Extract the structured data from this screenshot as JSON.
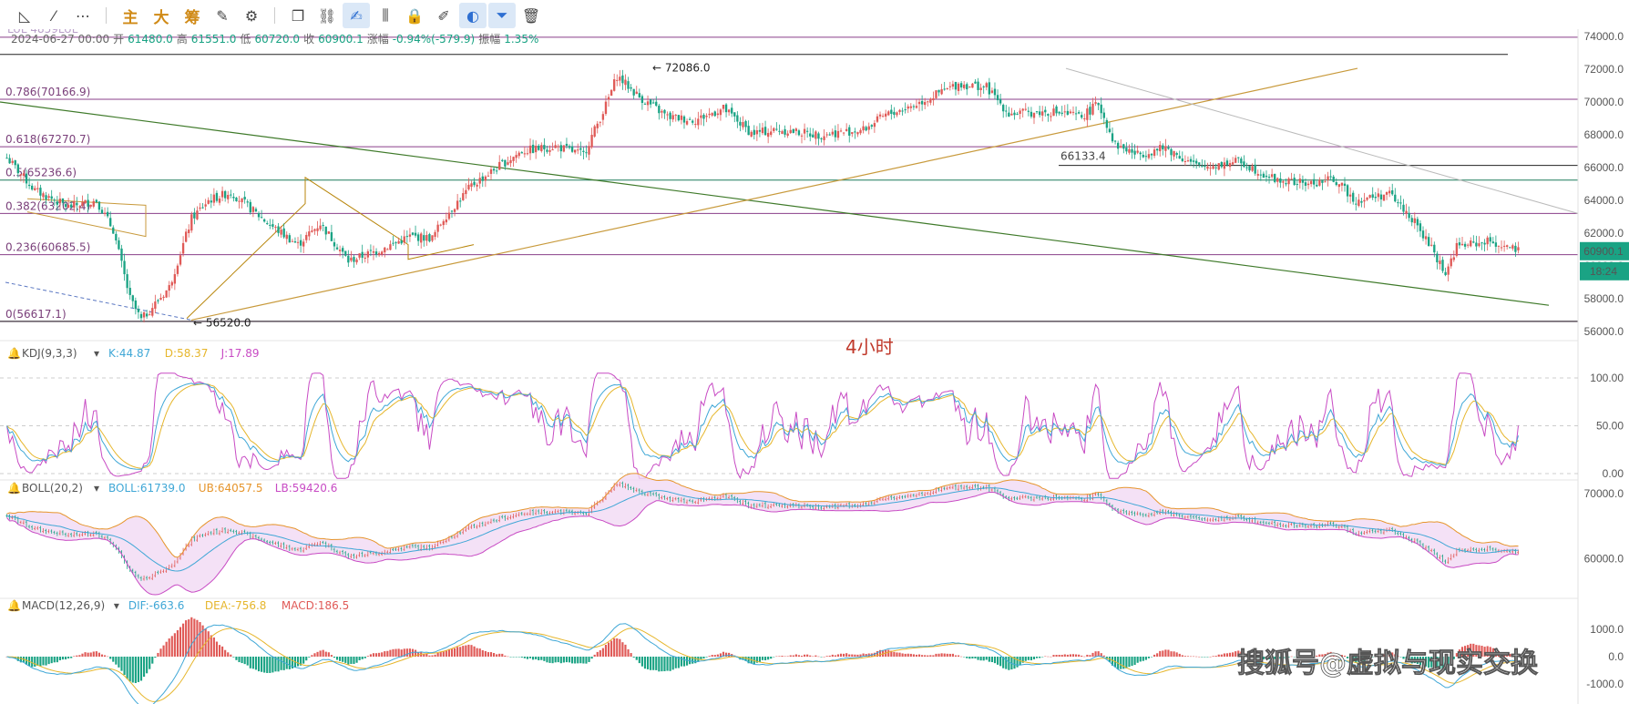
{
  "toolbar": {
    "items": [
      {
        "name": "ruler-icon",
        "glyph": "◺"
      },
      {
        "name": "line-tool-icon",
        "glyph": "⁄"
      },
      {
        "name": "more-icon",
        "glyph": "⋯"
      },
      {
        "name": "sep"
      },
      {
        "name": "zhu-button",
        "label": "主"
      },
      {
        "name": "da-button",
        "label": "大"
      },
      {
        "name": "chou-button",
        "label": "筹"
      },
      {
        "name": "edit-icon",
        "glyph": "✎"
      },
      {
        "name": "brush-settings-icon",
        "glyph": "⚙"
      },
      {
        "name": "sep"
      },
      {
        "name": "copy-icon",
        "glyph": "❐"
      },
      {
        "name": "link-icon",
        "glyph": "⛓"
      },
      {
        "name": "draw-mode-icon",
        "glyph": "✍",
        "active": true
      },
      {
        "name": "candle-icon",
        "glyph": "⫼"
      },
      {
        "name": "lock-icon",
        "glyph": "🔒"
      },
      {
        "name": "note-icon",
        "glyph": "✐"
      },
      {
        "name": "magnet-icon",
        "glyph": "◐",
        "active": true
      },
      {
        "name": "filter-icon",
        "glyph": "⏷",
        "active": true
      },
      {
        "name": "trash-icon",
        "glyph": "🗑"
      }
    ]
  },
  "header": {
    "symbol_fragment": "LUL 4859LUL",
    "date": "2024-06-27 00:00",
    "open_label": "开",
    "open": "61480.0",
    "high_label": "高",
    "high": "61551.0",
    "low_label": "低",
    "low": "60720.0",
    "close_label": "收",
    "close": "60900.1",
    "change_label": "涨幅",
    "change": "-0.94%(-579.9)",
    "amplitude_label": "振幅",
    "amplitude": "1.35%"
  },
  "main_chart": {
    "y_ticks": [
      "74000.0",
      "72000.0",
      "70000.0",
      "68000.0",
      "66000.0",
      "64000.0",
      "62000.0",
      "60000.0",
      "58000.0",
      "56000.0"
    ],
    "fib_levels": [
      {
        "label": "0.786(70166.9)",
        "value": 70166.9
      },
      {
        "label": "0.618(67270.7)",
        "value": 67270.7
      },
      {
        "label": "0.5(65236.6)",
        "value": 65236.6
      },
      {
        "label": "0.382(63202.4)",
        "value": 63202.4
      },
      {
        "label": "0.236(60685.5)",
        "value": 60685.5
      },
      {
        "label": "0(56617.1)",
        "value": 56617.1
      }
    ],
    "annotations": {
      "high_marker": "← 72086.0",
      "low_marker": "← 56520.0",
      "level_label": "66133.4",
      "period_label": "4小时"
    },
    "last_price": "60900.1",
    "countdown": "18:24",
    "colors": {
      "up": "#e05a57",
      "down": "#1aa384",
      "fib": "#8a3f8a",
      "last_price": "#1aa384"
    }
  },
  "kdj": {
    "title": "KDJ(9,3,3)",
    "k_label": "K:44.87",
    "d_label": "D:58.37",
    "j_label": "J:17.89",
    "y_ticks": [
      "100.00",
      "50.00",
      "0.00"
    ],
    "colors": {
      "k": "#3fa7d6",
      "d": "#e6b62c",
      "j": "#c84bc4"
    }
  },
  "boll": {
    "title": "BOLL(20,2)",
    "mid_label": "BOLL:61739.0",
    "ub_label": "UB:64057.5",
    "lb_label": "LB:59420.6",
    "y_ticks": [
      "70000.0",
      "60000.0"
    ],
    "colors": {
      "mid": "#3fa7d6",
      "ub": "#e6952c",
      "lb": "#c84bc4",
      "fill": "#f1d9f4"
    }
  },
  "macd": {
    "title": "MACD(12,26,9)",
    "dif_label": "DIF:-663.6",
    "dea_label": "DEA:-756.8",
    "macd_label": "MACD:186.5",
    "y_ticks": [
      "1000.0",
      "0.0",
      "-1000.0"
    ],
    "colors": {
      "dif": "#3fa7d6",
      "dea": "#e6b62c"
    }
  },
  "watermark": "搜狐号@虚拟与现实交换",
  "chart_data": {
    "type": "candlestick",
    "timeframe": "4小时",
    "ylim": [
      56000,
      74000
    ],
    "close_path": [
      [
        0,
        66600
      ],
      [
        10,
        64600
      ],
      [
        22,
        63600
      ],
      [
        32,
        64000
      ],
      [
        38,
        62200
      ],
      [
        44,
        58000
      ],
      [
        48,
        56700
      ],
      [
        58,
        58700
      ],
      [
        66,
        62900
      ],
      [
        72,
        64000
      ],
      [
        80,
        64500
      ],
      [
        94,
        62500
      ],
      [
        104,
        61300
      ],
      [
        112,
        62600
      ],
      [
        122,
        60300
      ],
      [
        132,
        60900
      ],
      [
        144,
        61800
      ],
      [
        152,
        61700
      ],
      [
        156,
        62900
      ],
      [
        166,
        64900
      ],
      [
        176,
        66100
      ],
      [
        184,
        67000
      ],
      [
        196,
        67300
      ],
      [
        206,
        66800
      ],
      [
        214,
        69800
      ],
      [
        218,
        71600
      ],
      [
        226,
        70300
      ],
      [
        236,
        69100
      ],
      [
        246,
        68900
      ],
      [
        256,
        69600
      ],
      [
        266,
        68100
      ],
      [
        276,
        68300
      ],
      [
        290,
        68000
      ],
      [
        306,
        68300
      ],
      [
        314,
        69200
      ],
      [
        324,
        69800
      ],
      [
        340,
        71100
      ],
      [
        350,
        70900
      ],
      [
        358,
        69300
      ],
      [
        374,
        69400
      ],
      [
        384,
        69100
      ],
      [
        390,
        69900
      ],
      [
        396,
        67400
      ],
      [
        404,
        66800
      ],
      [
        414,
        67200
      ],
      [
        426,
        66000
      ],
      [
        440,
        66400
      ],
      [
        454,
        65200
      ],
      [
        466,
        65000
      ],
      [
        474,
        65300
      ],
      [
        482,
        64000
      ],
      [
        494,
        64400
      ],
      [
        502,
        62900
      ],
      [
        510,
        60800
      ],
      [
        514,
        59500
      ],
      [
        518,
        61200
      ],
      [
        530,
        61500
      ],
      [
        540,
        60900
      ]
    ]
  }
}
